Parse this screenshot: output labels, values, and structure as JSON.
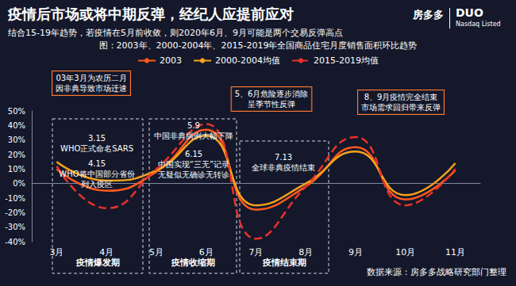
{
  "chart_data": {
    "type": "line",
    "title": "疫情后市场或将中期反弹，经纪人应提前应对",
    "subtitle": "结合15-19年趋势，若疫情在5月前收敛，则2020年6月、9月可能是两个交易反弹高点",
    "chart_title": "图：2003年、2000-2004年、2015-2019年全国商品住宅月度销售面积环比趋势",
    "logo": [
      "房多多",
      "DUO",
      "Nasdaq Listed"
    ],
    "categories": [
      "3月",
      "4月",
      "5月",
      "6月",
      "7月",
      "8月",
      "9月",
      "10月",
      "11月"
    ],
    "series": [
      {
        "name": "2003",
        "color": "#ff5a1f",
        "line_style": "solid",
        "marker": "none",
        "values": [
          10,
          -5,
          8,
          37,
          -18,
          -2,
          25,
          -11,
          9
        ]
      },
      {
        "name": "2000-2004均值",
        "color": "#f7a21b",
        "line_style": "solid",
        "marker": "none",
        "values": [
          15,
          2,
          9,
          33,
          -15,
          0,
          22,
          -8,
          14
        ]
      },
      {
        "name": "2015-2019均值",
        "color": "#e8322b",
        "line_style": "dashed",
        "marker": "none",
        "values": [
          12,
          -17,
          10,
          41,
          -38,
          -2,
          32,
          -15,
          10
        ]
      }
    ],
    "ylim": [
      -40,
      50
    ],
    "yticks": [
      {
        "value": -40,
        "label": "-40%"
      },
      {
        "value": -30,
        "label": "-30%"
      },
      {
        "value": -20,
        "label": "-20%"
      },
      {
        "value": -10,
        "label": "-10%"
      },
      {
        "value": 0,
        "label": "0%"
      },
      {
        "value": 10,
        "label": "10%"
      },
      {
        "value": 20,
        "label": "20%"
      },
      {
        "value": 30,
        "label": "30%"
      },
      {
        "value": 40,
        "label": "40%"
      },
      {
        "value": 50,
        "label": "50%"
      }
    ],
    "grid": false,
    "legend": "top",
    "annotations": [
      "03年3月为农历二月\n因非典导致市场迁速",
      "3.15\nWHO正式命名SARS",
      "4.15\nWHO将中国部分省份\n列入疫区",
      "5.9\n中国非典病例大幅下降",
      "6.15\n中国实现“三无”记录\n无疑似无确诊无转诊",
      "5、6月危险逐步消除\n呈季节性反弹",
      "7.13\n全球非典疫情结束",
      "8、9月疫情完全结束\n市场需求回归带来反弹"
    ],
    "phases": [
      "疫情爆发期",
      "疫情收缩期",
      "疫情结束期"
    ],
    "source": "数据来源：房多多战略研究部门整理"
  }
}
